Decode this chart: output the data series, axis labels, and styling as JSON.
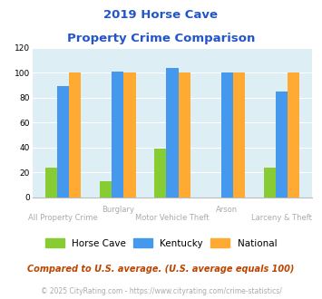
{
  "title_line1": "2019 Horse Cave",
  "title_line2": "Property Crime Comparison",
  "categories": [
    "All Property Crime",
    "Burglary",
    "Motor Vehicle Theft",
    "Arson",
    "Larceny & Theft"
  ],
  "top_labels": [
    "",
    "Burglary",
    "",
    "Arson",
    ""
  ],
  "bottom_labels": [
    "All Property Crime",
    "",
    "Motor Vehicle Theft",
    "",
    "Larceny & Theft"
  ],
  "horse_cave": [
    24,
    13,
    39,
    0,
    24
  ],
  "kentucky": [
    89,
    101,
    104,
    100,
    85
  ],
  "national": [
    100,
    100,
    100,
    100,
    100
  ],
  "horse_cave_color": "#88cc33",
  "kentucky_color": "#4499ee",
  "national_color": "#ffaa33",
  "background_color": "#ddeef5",
  "ylim": [
    0,
    120
  ],
  "yticks": [
    0,
    20,
    40,
    60,
    80,
    100,
    120
  ],
  "bar_width": 0.22,
  "legend_labels": [
    "Horse Cave",
    "Kentucky",
    "National"
  ],
  "footnote1": "Compared to U.S. average. (U.S. average equals 100)",
  "footnote2": "© 2025 CityRating.com - https://www.cityrating.com/crime-statistics/",
  "title_color": "#2255cc",
  "label_color": "#aaaaaa",
  "footnote1_color": "#bb4400",
  "footnote2_color": "#aaaaaa",
  "footnote2_link_color": "#4499ee"
}
